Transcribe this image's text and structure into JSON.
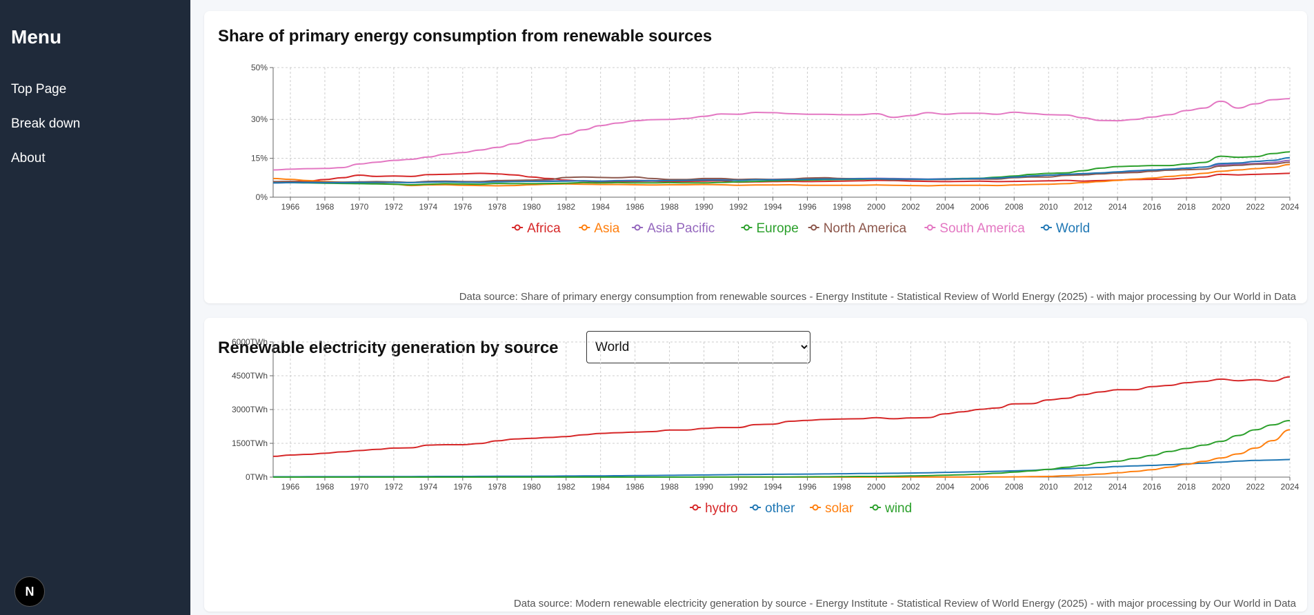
{
  "sidebar": {
    "title": "Menu",
    "items": [
      {
        "label": "Top Page"
      },
      {
        "label": "Break down"
      },
      {
        "label": "About"
      }
    ],
    "badge": "N"
  },
  "card1": {
    "title": "Share of primary energy consumption from renewable sources",
    "source": "Data source: Share of primary energy consumption from renewable sources - Energy Institute - Statistical Review of World Energy (2025) - with major processing by Our World in Data"
  },
  "card2": {
    "title": "Renewable electricity generation by source",
    "select": {
      "value": "World",
      "options": [
        "World"
      ]
    },
    "source": "Data source: Modern renewable electricity generation by source - Energy Institute - Statistical Review of World Energy (2025) - with major processing by Our World in Data"
  },
  "chart_data": [
    {
      "type": "line",
      "title": "Share of primary energy consumption from renewable sources",
      "x": [
        1965,
        1966,
        1967,
        1968,
        1969,
        1970,
        1971,
        1972,
        1973,
        1974,
        1975,
        1976,
        1977,
        1978,
        1979,
        1980,
        1981,
        1982,
        1983,
        1984,
        1985,
        1986,
        1987,
        1988,
        1989,
        1990,
        1991,
        1992,
        1993,
        1994,
        1995,
        1996,
        1997,
        1998,
        1999,
        2000,
        2001,
        2002,
        2003,
        2004,
        2005,
        2006,
        2007,
        2008,
        2009,
        2010,
        2011,
        2012,
        2013,
        2014,
        2015,
        2016,
        2017,
        2018,
        2019,
        2020,
        2021,
        2022,
        2023,
        2024
      ],
      "x_ticks": [
        1966,
        1968,
        1970,
        1972,
        1974,
        1976,
        1978,
        1980,
        1982,
        1984,
        1986,
        1988,
        1990,
        1992,
        1994,
        1996,
        1998,
        2000,
        2002,
        2004,
        2006,
        2008,
        2010,
        2012,
        2014,
        2016,
        2018,
        2020,
        2022,
        2024
      ],
      "y_ticks": [
        0,
        15,
        30,
        50
      ],
      "y_tick_labels": [
        "0%",
        "15%",
        "30%",
        "50%"
      ],
      "ylim": [
        0,
        50
      ],
      "grid": true,
      "legend": "bottom-center",
      "series": [
        {
          "name": "Africa",
          "color": "#d62728",
          "values": [
            5.8,
            6.0,
            6.2,
            6.8,
            7.5,
            8.5,
            8.0,
            8.2,
            8.0,
            8.7,
            8.8,
            9.0,
            9.2,
            9.0,
            8.6,
            7.8,
            7.2,
            6.6,
            6.2,
            5.9,
            6.0,
            6.1,
            6.2,
            6.0,
            6.1,
            6.2,
            6.3,
            5.8,
            5.9,
            6.0,
            6.1,
            6.0,
            6.1,
            6.2,
            6.3,
            6.5,
            6.4,
            6.2,
            6.1,
            6.0,
            6.1,
            6.2,
            6.0,
            6.1,
            6.2,
            6.3,
            6.5,
            6.2,
            6.4,
            6.6,
            6.8,
            6.9,
            7.0,
            7.4,
            7.8,
            8.8,
            8.6,
            8.8,
            9.0,
            9.2
          ]
        },
        {
          "name": "Asia",
          "color": "#ff7f0e",
          "values": [
            7.2,
            6.9,
            6.4,
            6.0,
            5.8,
            5.6,
            5.3,
            5.0,
            4.5,
            4.7,
            4.8,
            4.6,
            4.5,
            4.4,
            4.5,
            4.8,
            5.0,
            5.1,
            5.0,
            4.9,
            4.9,
            4.8,
            4.7,
            4.8,
            4.8,
            4.9,
            4.8,
            4.6,
            4.7,
            4.7,
            4.8,
            4.6,
            4.6,
            4.6,
            4.6,
            4.7,
            4.6,
            4.5,
            4.4,
            4.6,
            4.6,
            4.6,
            4.5,
            4.7,
            4.9,
            5.0,
            5.2,
            5.6,
            6.0,
            6.5,
            7.0,
            7.4,
            8.0,
            8.5,
            9.2,
            10.0,
            10.5,
            11.0,
            11.5,
            12.6
          ]
        },
        {
          "name": "Asia Pacific",
          "color": "#9467bd",
          "values": [
            5.5,
            5.6,
            5.6,
            5.6,
            5.6,
            5.7,
            5.8,
            5.8,
            5.7,
            6.0,
            6.1,
            6.0,
            5.8,
            6.0,
            6.1,
            6.2,
            6.3,
            6.3,
            6.3,
            6.2,
            6.4,
            6.5,
            6.4,
            6.5,
            6.6,
            6.8,
            6.9,
            6.8,
            6.8,
            6.9,
            7.0,
            7.0,
            7.1,
            7.1,
            7.2,
            7.3,
            7.2,
            7.1,
            7.0,
            7.1,
            7.2,
            7.3,
            7.5,
            7.8,
            8.2,
            8.5,
            8.8,
            9.0,
            9.3,
            9.6,
            10.0,
            10.4,
            10.8,
            11.2,
            11.6,
            12.5,
            12.8,
            13.0,
            13.4,
            14.2
          ]
        },
        {
          "name": "Europe",
          "color": "#2ca02c",
          "values": [
            5.7,
            5.6,
            5.5,
            5.4,
            5.3,
            5.2,
            5.1,
            5.0,
            4.8,
            5.0,
            5.2,
            5.1,
            5.0,
            5.3,
            5.2,
            5.2,
            5.3,
            5.4,
            5.6,
            5.5,
            5.6,
            5.5,
            5.5,
            5.6,
            5.5,
            5.5,
            5.7,
            5.9,
            6.1,
            6.3,
            6.5,
            6.6,
            6.7,
            6.8,
            6.9,
            7.0,
            7.0,
            6.8,
            6.8,
            7.0,
            7.2,
            7.3,
            7.7,
            8.2,
            8.8,
            9.2,
            9.4,
            10.2,
            11.2,
            11.8,
            12.0,
            12.2,
            12.2,
            12.8,
            13.4,
            15.8,
            15.4,
            15.6,
            16.8,
            17.5
          ]
        },
        {
          "name": "North America",
          "color": "#8c564b",
          "values": [
            6.0,
            6.1,
            5.9,
            5.8,
            5.8,
            5.9,
            6.0,
            5.9,
            5.7,
            6.1,
            6.2,
            6.0,
            6.0,
            6.4,
            6.5,
            6.6,
            6.8,
            7.6,
            7.8,
            7.6,
            7.5,
            7.8,
            7.2,
            6.8,
            6.8,
            7.2,
            7.2,
            6.8,
            7.0,
            6.8,
            7.0,
            7.4,
            7.5,
            7.2,
            7.1,
            7.0,
            6.6,
            6.8,
            6.8,
            6.8,
            7.0,
            7.0,
            7.0,
            7.5,
            7.8,
            7.8,
            8.4,
            8.6,
            9.0,
            9.3,
            9.5,
            10.0,
            10.4,
            10.6,
            10.8,
            12.0,
            12.3,
            12.7,
            12.8,
            13.5
          ]
        },
        {
          "name": "South America",
          "color": "#e377c2",
          "values": [
            10.5,
            10.8,
            11.0,
            11.1,
            11.4,
            12.8,
            13.5,
            14.2,
            14.6,
            15.5,
            16.6,
            17.2,
            18.2,
            19.2,
            20.6,
            22.0,
            22.8,
            24.2,
            26.0,
            27.6,
            28.6,
            29.5,
            29.9,
            30.0,
            30.4,
            31.2,
            32.1,
            32.0,
            32.7,
            32.6,
            32.2,
            32.0,
            32.0,
            31.8,
            31.8,
            32.2,
            30.8,
            31.5,
            32.6,
            32.0,
            32.4,
            32.4,
            32.0,
            32.8,
            32.3,
            31.8,
            31.7,
            30.6,
            29.6,
            29.5,
            30.0,
            30.9,
            31.8,
            33.4,
            34.4,
            37.0,
            34.4,
            36.0,
            37.6,
            38.0
          ]
        },
        {
          "name": "World",
          "color": "#1f77b4",
          "values": [
            5.5,
            5.6,
            5.6,
            5.6,
            5.6,
            5.7,
            5.7,
            5.7,
            5.6,
            5.8,
            5.9,
            5.8,
            5.7,
            5.9,
            6.0,
            6.1,
            6.1,
            6.2,
            6.3,
            6.2,
            6.3,
            6.3,
            6.3,
            6.4,
            6.5,
            6.6,
            6.6,
            6.5,
            6.7,
            6.7,
            6.8,
            6.9,
            7.0,
            7.0,
            7.1,
            7.1,
            7.0,
            7.0,
            6.9,
            7.0,
            7.1,
            7.2,
            7.4,
            7.8,
            8.2,
            8.5,
            8.8,
            9.1,
            9.4,
            9.8,
            10.2,
            10.5,
            10.8,
            11.2,
            11.6,
            13.0,
            13.2,
            13.8,
            14.2,
            15.2
          ]
        }
      ]
    },
    {
      "type": "line",
      "title": "Renewable electricity generation by source",
      "x": [
        1965,
        1966,
        1967,
        1968,
        1969,
        1970,
        1971,
        1972,
        1973,
        1974,
        1975,
        1976,
        1977,
        1978,
        1979,
        1980,
        1981,
        1982,
        1983,
        1984,
        1985,
        1986,
        1987,
        1988,
        1989,
        1990,
        1991,
        1992,
        1993,
        1994,
        1995,
        1996,
        1997,
        1998,
        1999,
        2000,
        2001,
        2002,
        2003,
        2004,
        2005,
        2006,
        2007,
        2008,
        2009,
        2010,
        2011,
        2012,
        2013,
        2014,
        2015,
        2016,
        2017,
        2018,
        2019,
        2020,
        2021,
        2022,
        2023,
        2024
      ],
      "x_ticks": [
        1966,
        1968,
        1970,
        1972,
        1974,
        1976,
        1978,
        1980,
        1982,
        1984,
        1986,
        1988,
        1990,
        1992,
        1994,
        1996,
        1998,
        2000,
        2002,
        2004,
        2006,
        2008,
        2010,
        2012,
        2014,
        2016,
        2018,
        2020,
        2022,
        2024
      ],
      "y_ticks": [
        0,
        1500,
        3000,
        4500,
        6000
      ],
      "y_tick_labels": [
        "0TWh",
        "1500TWh",
        "3000TWh",
        "4500TWh",
        "6000TWh"
      ],
      "ylim": [
        0,
        6000
      ],
      "grid": true,
      "legend": "bottom-center",
      "series": [
        {
          "name": "hydro",
          "color": "#d62728",
          "values": [
            920,
            980,
            1010,
            1060,
            1120,
            1180,
            1230,
            1290,
            1300,
            1420,
            1440,
            1440,
            1490,
            1610,
            1690,
            1720,
            1760,
            1800,
            1880,
            1940,
            1970,
            2000,
            2020,
            2090,
            2090,
            2160,
            2200,
            2200,
            2330,
            2350,
            2480,
            2520,
            2560,
            2580,
            2590,
            2640,
            2590,
            2630,
            2640,
            2810,
            2900,
            3010,
            3070,
            3250,
            3260,
            3430,
            3500,
            3660,
            3780,
            3880,
            3880,
            4020,
            4070,
            4190,
            4250,
            4350,
            4280,
            4330,
            4260,
            4450
          ]
        },
        {
          "name": "other",
          "color": "#1f77b4",
          "values": [
            15,
            16,
            17,
            18,
            19,
            20,
            22,
            24,
            26,
            28,
            30,
            32,
            34,
            36,
            38,
            40,
            44,
            48,
            52,
            56,
            62,
            68,
            74,
            80,
            88,
            96,
            104,
            112,
            118,
            124,
            130,
            136,
            142,
            150,
            158,
            166,
            172,
            180,
            194,
            210,
            226,
            240,
            258,
            278,
            300,
            340,
            370,
            400,
            430,
            470,
            500,
            520,
            550,
            590,
            620,
            660,
            710,
            740,
            760,
            780
          ]
        },
        {
          "name": "solar",
          "color": "#ff7f0e",
          "values": [
            0,
            0,
            0,
            0,
            0,
            0,
            0,
            0,
            0,
            0,
            0,
            0,
            0,
            0,
            0,
            0,
            0,
            0,
            0,
            0,
            0,
            0,
            0,
            0,
            0,
            0,
            0,
            0,
            0,
            0,
            0,
            0,
            0,
            1,
            1,
            1,
            1,
            2,
            3,
            3,
            4,
            5,
            7,
            12,
            20,
            32,
            60,
            95,
            135,
            190,
            250,
            330,
            440,
            570,
            700,
            850,
            1030,
            1290,
            1620,
            2100
          ]
        },
        {
          "name": "wind",
          "color": "#2ca02c",
          "values": [
            0,
            0,
            0,
            0,
            0,
            0,
            0,
            0,
            0,
            0,
            0,
            0,
            0,
            0,
            0,
            0,
            0,
            0,
            0,
            0,
            0,
            0,
            0,
            0,
            0,
            4,
            4,
            5,
            6,
            7,
            8,
            12,
            16,
            21,
            30,
            31,
            38,
            52,
            63,
            85,
            104,
            132,
            170,
            220,
            276,
            342,
            437,
            524,
            646,
            706,
            830,
            960,
            1140,
            1270,
            1420,
            1590,
            1850,
            2100,
            2320,
            2510
          ]
        }
      ]
    }
  ]
}
